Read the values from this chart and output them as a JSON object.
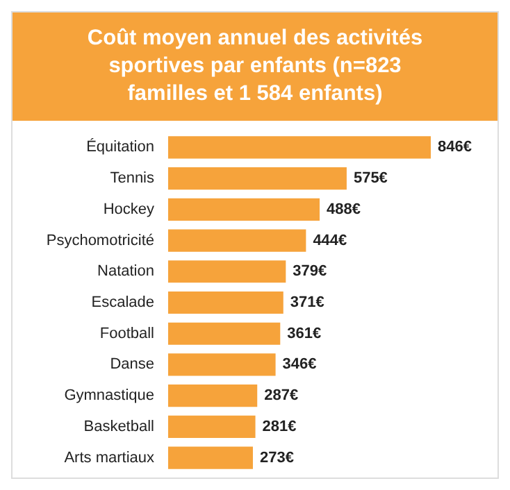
{
  "chart_data": {
    "type": "bar",
    "orientation": "horizontal",
    "title": "Coût moyen annuel des activités sportives par enfants (n=823 familles et 1 584 enfants)",
    "categories": [
      "Équitation",
      "Tennis",
      "Hockey",
      "Psychomotricité",
      "Natation",
      "Escalade",
      "Football",
      "Danse",
      "Gymnastique",
      "Basketball",
      "Arts martiaux"
    ],
    "values": [
      846,
      575,
      488,
      444,
      379,
      371,
      361,
      346,
      287,
      281,
      273
    ],
    "value_labels": [
      "846€",
      "575€",
      "488€",
      "444€",
      "379€",
      "371€",
      "361€",
      "346€",
      "287€",
      "281€",
      "273€"
    ],
    "color": "#f6a33b"
  }
}
